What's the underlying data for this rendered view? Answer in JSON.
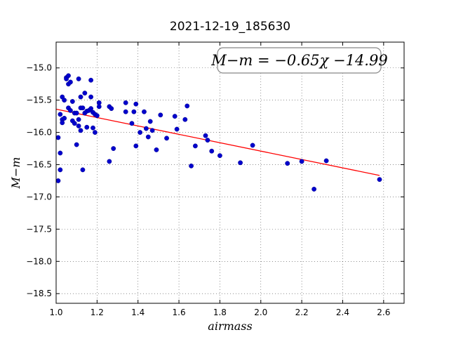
{
  "chart_data": {
    "type": "scatter",
    "title": "2021-12-19_185630",
    "xlabel": "airmass",
    "ylabel": "M−m",
    "xlim": [
      1.0,
      2.7
    ],
    "ylim": [
      -18.65,
      -14.6
    ],
    "x_ticks": [
      1.0,
      1.2,
      1.4,
      1.6,
      1.8,
      2.0,
      2.2,
      2.4,
      2.6
    ],
    "x_tick_labels": [
      "1.0",
      "1.2",
      "1.4",
      "1.6",
      "1.8",
      "2.0",
      "2.2",
      "2.4",
      "2.6"
    ],
    "y_ticks": [
      -15.0,
      -15.5,
      -16.0,
      -16.5,
      -17.0,
      -17.5,
      -18.0,
      -18.5
    ],
    "y_tick_labels": [
      "−15.0",
      "−15.5",
      "−16.0",
      "−16.5",
      "−17.0",
      "−17.5",
      "−18.0",
      "−18.5"
    ],
    "grid": true,
    "annotation": {
      "text": "M−m = −0.65χ −14.99",
      "position": "top-right"
    },
    "fit": {
      "slope": -0.65,
      "intercept": -14.99,
      "x_range": [
        1.0,
        2.58
      ],
      "color": "#ff0000"
    },
    "marker_color": "#0000cc",
    "points": [
      {
        "x": 1.01,
        "y": -16.75
      },
      {
        "x": 1.01,
        "y": -16.08
      },
      {
        "x": 1.02,
        "y": -16.58
      },
      {
        "x": 1.02,
        "y": -16.32
      },
      {
        "x": 1.02,
        "y": -15.72
      },
      {
        "x": 1.03,
        "y": -15.8
      },
      {
        "x": 1.03,
        "y": -15.85
      },
      {
        "x": 1.03,
        "y": -15.45
      },
      {
        "x": 1.04,
        "y": -15.5
      },
      {
        "x": 1.04,
        "y": -15.78
      },
      {
        "x": 1.05,
        "y": -15.15
      },
      {
        "x": 1.05,
        "y": -15.17
      },
      {
        "x": 1.06,
        "y": -15.12
      },
      {
        "x": 1.06,
        "y": -15.25
      },
      {
        "x": 1.06,
        "y": -15.62
      },
      {
        "x": 1.07,
        "y": -15.22
      },
      {
        "x": 1.07,
        "y": -15.66
      },
      {
        "x": 1.08,
        "y": -15.52
      },
      {
        "x": 1.08,
        "y": -15.82
      },
      {
        "x": 1.09,
        "y": -15.7
      },
      {
        "x": 1.09,
        "y": -15.86
      },
      {
        "x": 1.1,
        "y": -16.19
      },
      {
        "x": 1.1,
        "y": -15.7
      },
      {
        "x": 1.11,
        "y": -15.8
      },
      {
        "x": 1.11,
        "y": -15.9
      },
      {
        "x": 1.11,
        "y": -15.17
      },
      {
        "x": 1.12,
        "y": -15.62
      },
      {
        "x": 1.12,
        "y": -15.97
      },
      {
        "x": 1.12,
        "y": -15.45
      },
      {
        "x": 1.13,
        "y": -16.58
      },
      {
        "x": 1.13,
        "y": -15.62
      },
      {
        "x": 1.14,
        "y": -15.39
      },
      {
        "x": 1.14,
        "y": -15.7
      },
      {
        "x": 1.15,
        "y": -15.67
      },
      {
        "x": 1.15,
        "y": -15.92
      },
      {
        "x": 1.16,
        "y": -15.66
      },
      {
        "x": 1.17,
        "y": -15.45
      },
      {
        "x": 1.17,
        "y": -15.19
      },
      {
        "x": 1.17,
        "y": -15.63
      },
      {
        "x": 1.18,
        "y": -15.69
      },
      {
        "x": 1.18,
        "y": -15.93
      },
      {
        "x": 1.19,
        "y": -15.72
      },
      {
        "x": 1.19,
        "y": -16.0
      },
      {
        "x": 1.2,
        "y": -15.74
      },
      {
        "x": 1.21,
        "y": -15.54
      },
      {
        "x": 1.21,
        "y": -15.6
      },
      {
        "x": 1.26,
        "y": -15.6
      },
      {
        "x": 1.26,
        "y": -16.45
      },
      {
        "x": 1.27,
        "y": -15.63
      },
      {
        "x": 1.28,
        "y": -16.25
      },
      {
        "x": 1.34,
        "y": -15.54
      },
      {
        "x": 1.34,
        "y": -15.68
      },
      {
        "x": 1.37,
        "y": -15.86
      },
      {
        "x": 1.38,
        "y": -15.68
      },
      {
        "x": 1.39,
        "y": -15.56
      },
      {
        "x": 1.39,
        "y": -16.21
      },
      {
        "x": 1.41,
        "y": -16.0
      },
      {
        "x": 1.43,
        "y": -15.68
      },
      {
        "x": 1.44,
        "y": -15.94
      },
      {
        "x": 1.45,
        "y": -16.07
      },
      {
        "x": 1.46,
        "y": -15.83
      },
      {
        "x": 1.47,
        "y": -15.97
      },
      {
        "x": 1.49,
        "y": -16.27
      },
      {
        "x": 1.51,
        "y": -15.73
      },
      {
        "x": 1.54,
        "y": -16.09
      },
      {
        "x": 1.58,
        "y": -15.75
      },
      {
        "x": 1.59,
        "y": -15.95
      },
      {
        "x": 1.63,
        "y": -15.8
      },
      {
        "x": 1.64,
        "y": -15.59
      },
      {
        "x": 1.66,
        "y": -16.52
      },
      {
        "x": 1.68,
        "y": -16.21
      },
      {
        "x": 1.73,
        "y": -16.05
      },
      {
        "x": 1.74,
        "y": -16.12
      },
      {
        "x": 1.76,
        "y": -16.29
      },
      {
        "x": 1.8,
        "y": -16.36
      },
      {
        "x": 1.9,
        "y": -16.47
      },
      {
        "x": 1.96,
        "y": -16.2
      },
      {
        "x": 2.13,
        "y": -16.48
      },
      {
        "x": 2.2,
        "y": -16.45
      },
      {
        "x": 2.26,
        "y": -16.88
      },
      {
        "x": 2.32,
        "y": -16.44
      },
      {
        "x": 2.58,
        "y": -16.73
      }
    ]
  }
}
